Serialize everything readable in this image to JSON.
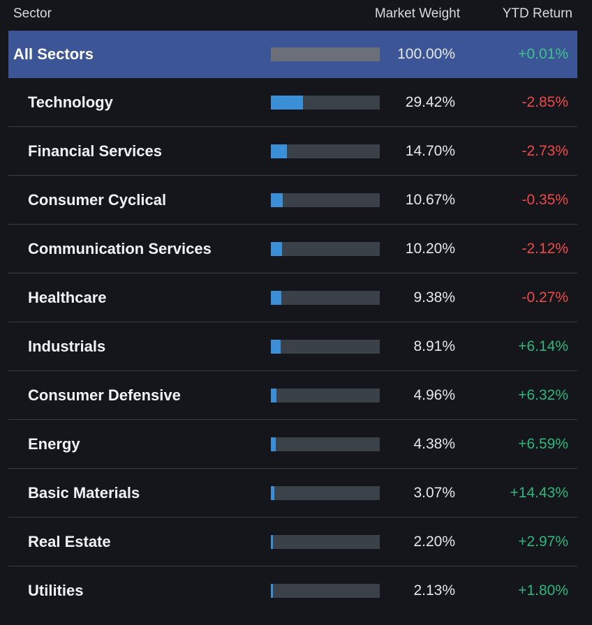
{
  "header": {
    "sector": "Sector",
    "market_weight": "Market Weight",
    "ytd_return": "YTD Return"
  },
  "colors": {
    "positive": "#2fb67c",
    "negative": "#ef4a47",
    "bar_fill": "#3a8fd6",
    "highlight_row": "#3c5596"
  },
  "rows": [
    {
      "sector": "All Sectors",
      "weight": "100.00%",
      "weight_value": 100.0,
      "ytd": "+0.01%",
      "ytd_sign": "pos"
    },
    {
      "sector": "Technology",
      "weight": "29.42%",
      "weight_value": 29.42,
      "ytd": "-2.85%",
      "ytd_sign": "neg"
    },
    {
      "sector": "Financial Services",
      "weight": "14.70%",
      "weight_value": 14.7,
      "ytd": "-2.73%",
      "ytd_sign": "neg"
    },
    {
      "sector": "Consumer Cyclical",
      "weight": "10.67%",
      "weight_value": 10.67,
      "ytd": "-0.35%",
      "ytd_sign": "neg"
    },
    {
      "sector": "Communication Services",
      "weight": "10.20%",
      "weight_value": 10.2,
      "ytd": "-2.12%",
      "ytd_sign": "neg"
    },
    {
      "sector": "Healthcare",
      "weight": "9.38%",
      "weight_value": 9.38,
      "ytd": "-0.27%",
      "ytd_sign": "neg"
    },
    {
      "sector": "Industrials",
      "weight": "8.91%",
      "weight_value": 8.91,
      "ytd": "+6.14%",
      "ytd_sign": "pos"
    },
    {
      "sector": "Consumer Defensive",
      "weight": "4.96%",
      "weight_value": 4.96,
      "ytd": "+6.32%",
      "ytd_sign": "pos"
    },
    {
      "sector": "Energy",
      "weight": "4.38%",
      "weight_value": 4.38,
      "ytd": "+6.59%",
      "ytd_sign": "pos"
    },
    {
      "sector": "Basic Materials",
      "weight": "3.07%",
      "weight_value": 3.07,
      "ytd": "+14.43%",
      "ytd_sign": "pos"
    },
    {
      "sector": "Real Estate",
      "weight": "2.20%",
      "weight_value": 2.2,
      "ytd": "+2.97%",
      "ytd_sign": "pos"
    },
    {
      "sector": "Utilities",
      "weight": "2.13%",
      "weight_value": 2.13,
      "ytd": "+1.80%",
      "ytd_sign": "pos"
    }
  ]
}
